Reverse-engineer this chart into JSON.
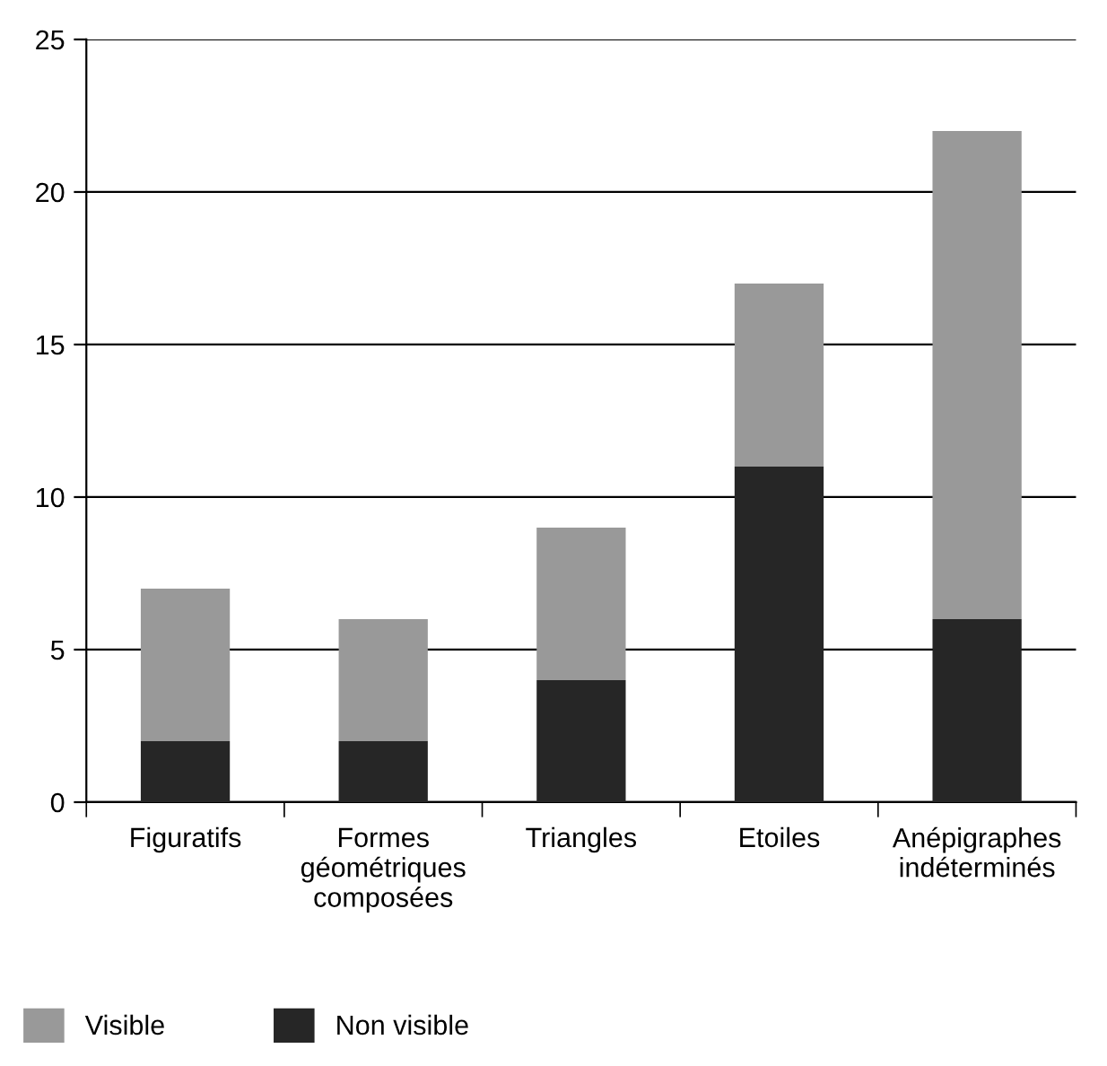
{
  "chart_data": {
    "type": "bar",
    "stacked": true,
    "categories": [
      "Figuratifs",
      "Formes\ngéométriques\ncomposées",
      "Triangles",
      "Etoiles",
      "Anépigraphes\nindéterminés"
    ],
    "series": [
      {
        "name": "Non visible",
        "color": "#262626",
        "values": [
          2,
          2,
          4,
          11,
          6
        ]
      },
      {
        "name": "Visible",
        "color": "#999999",
        "values": [
          5,
          4,
          5,
          6,
          16
        ]
      }
    ],
    "ylim": [
      0,
      25
    ],
    "yticks": [
      0,
      5,
      10,
      15,
      20,
      25
    ],
    "grid": "y",
    "legend": "bottom left"
  }
}
